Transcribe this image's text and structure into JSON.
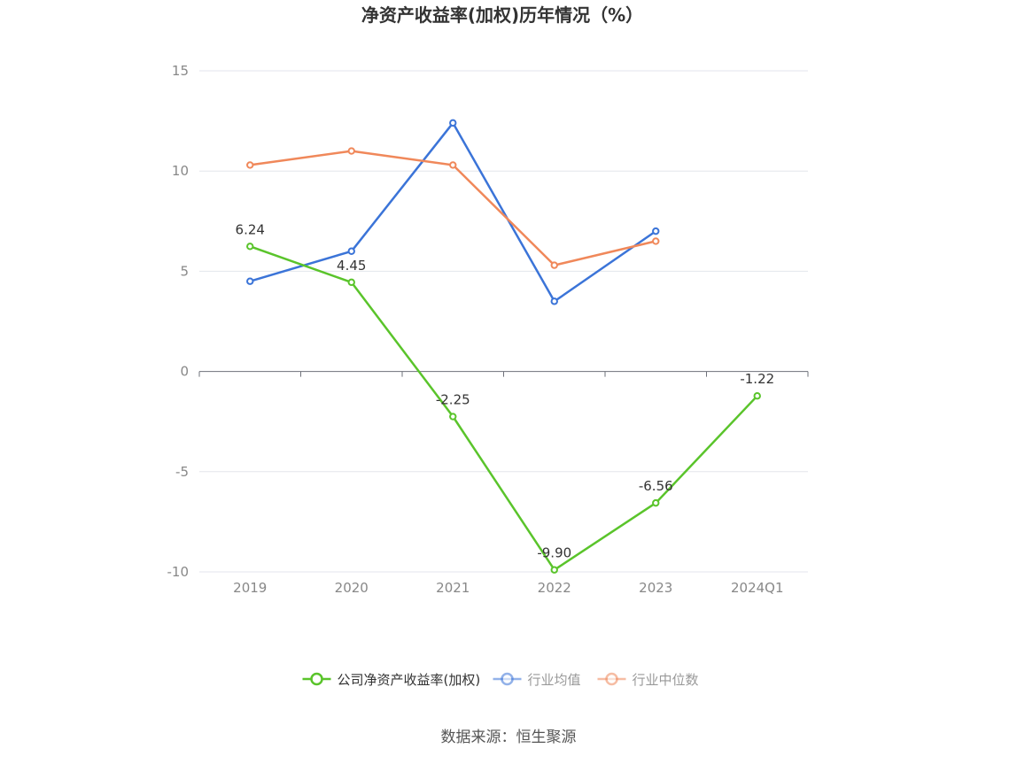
{
  "chart_data": {
    "type": "line",
    "title": "净资产收益率(加权)历年情况（%）",
    "categories": [
      "2019",
      "2020",
      "2021",
      "2022",
      "2023",
      "2024Q1"
    ],
    "ylim": [
      -10,
      15
    ],
    "yticks": [
      15,
      10,
      5,
      0,
      -5,
      -10
    ],
    "grid": true,
    "legend_position": "bottom-center",
    "series": [
      {
        "name": "公司净资产收益率(加权)",
        "values": [
          6.24,
          4.45,
          -2.25,
          -9.9,
          -6.56,
          -1.22
        ],
        "labels": [
          "6.24",
          "4.45",
          "-2.25",
          "-9.90",
          "-6.56",
          "-1.22"
        ],
        "color": "#5ac42b"
      },
      {
        "name": "行业均值",
        "values": [
          4.5,
          6.0,
          12.4,
          3.5,
          7.0,
          null
        ],
        "color": "#3b74d8"
      },
      {
        "name": "行业中位数",
        "values": [
          10.3,
          11.0,
          10.3,
          5.3,
          6.5,
          null
        ],
        "color": "#f0885a"
      }
    ]
  },
  "source": "数据来源：恒生聚源"
}
